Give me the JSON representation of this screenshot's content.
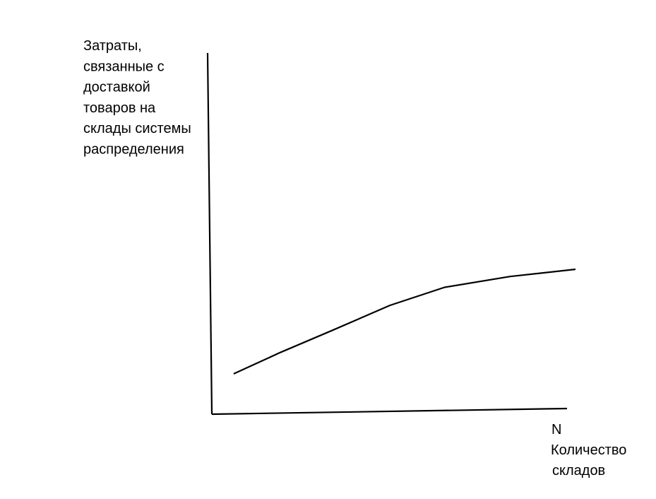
{
  "chart_data": {
    "type": "line",
    "y_label": [
      "Затраты,",
      "связанные с",
      "доставкой",
      "товаров на",
      "склады системы",
      "распределения"
    ],
    "x_label": [
      "N",
      "Количество",
      "складов"
    ],
    "x": [
      6,
      19,
      33,
      49,
      64,
      82,
      100
    ],
    "series": [
      {
        "color": "#000000",
        "values": [
          11,
          17,
          23,
          30,
          35,
          38,
          40
        ]
      }
    ],
    "xlim": [
      0,
      100
    ],
    "ylim": [
      0,
      100
    ]
  }
}
